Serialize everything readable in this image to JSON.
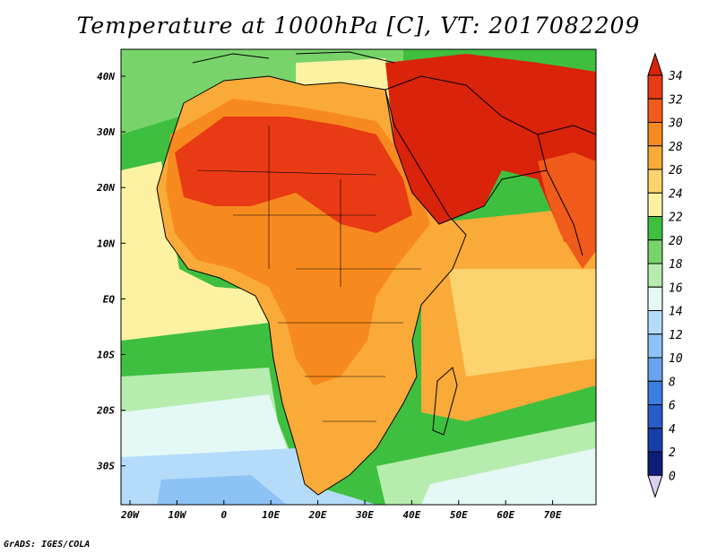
{
  "title": "Temperature at 1000hPa [C], VT: 2017082209",
  "credit": "GrADS: IGES/COLA",
  "map": {
    "lat_labels": [
      "40N",
      "30N",
      "20N",
      "10N",
      "EQ",
      "10S",
      "20S",
      "30S"
    ],
    "lon_labels": [
      "20W",
      "10W",
      "0",
      "10E",
      "20E",
      "30E",
      "40E",
      "50E",
      "60E",
      "70E"
    ]
  },
  "colorbar": {
    "labels": [
      "34",
      "32",
      "30",
      "28",
      "26",
      "24",
      "22",
      "20",
      "18",
      "16",
      "14",
      "12",
      "10",
      "8",
      "6",
      "4",
      "2",
      "0"
    ],
    "colors": {
      "above_34": "#d9230b",
      "c32_34": "#e83a14",
      "c30_32": "#f05a1a",
      "c28_30": "#f78a1e",
      "c26_28": "#faaa38",
      "c24_26": "#fcd46e",
      "c22_24": "#fdf2a2",
      "c20_22": "#3fbf3f",
      "c18_20": "#78d46a",
      "c16_18": "#b6ecae",
      "c14_16": "#e4f9f5",
      "c12_14": "#b4dcfa",
      "c10_12": "#8cc2f5",
      "c8_10": "#6aa4ee",
      "c6_8": "#3a7ee0",
      "c4_6": "#2a5cc8",
      "c2_4": "#183fa8",
      "c0_2": "#0e1e7a",
      "below_0": "#dcd0f4"
    }
  }
}
